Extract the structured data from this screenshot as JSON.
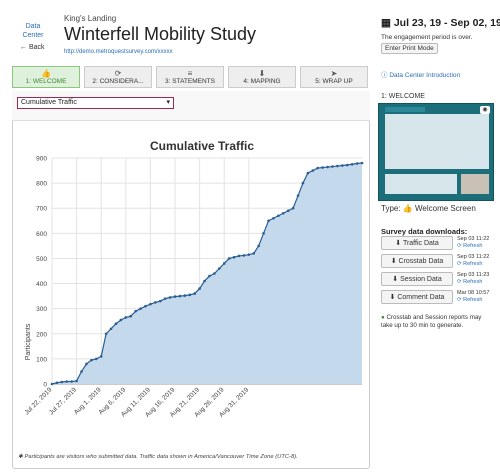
{
  "header": {
    "data_center": "Data Center",
    "back": "Back",
    "subtitle": "King's Landing",
    "title": "Winterfell Mobility Study",
    "url": "http://demo.metroquestsurvey.com/xxxxx",
    "date_range": "Jul 23, 19 - Sep 02, 19",
    "period_note": "The engagement period is over.",
    "print_mode": "Enter Print Mode"
  },
  "tabs": [
    {
      "label": "1: WELCOME",
      "icon": "thumbs-up-icon",
      "glyph": "👍",
      "active": true
    },
    {
      "label": "2: CONSIDERA...",
      "icon": "refresh-icon",
      "glyph": "⟳",
      "active": false
    },
    {
      "label": "3: STATEMENTS",
      "icon": "bars-icon",
      "glyph": "≡",
      "active": false
    },
    {
      "label": "4: MAPPING",
      "icon": "map-marker-icon",
      "glyph": "⬇",
      "active": false
    },
    {
      "label": "5: WRAP UP",
      "icon": "send-icon",
      "glyph": "➤",
      "active": false
    }
  ],
  "select": {
    "value": "Cumulative Traffic"
  },
  "footnote": "Participants are visitors who submitted data. Traffic data shown in America/Vancouver Time Zone (UTC-8).",
  "sidebar": {
    "intro_link": "Data Center Introduction",
    "step_label": "1: WELCOME",
    "type_label": "Type:",
    "type_value": "Welcome Screen",
    "downloads_title": "Survey data downloads:",
    "downloads": [
      {
        "label": "Traffic Data",
        "date": "Sep 03 11:22",
        "refresh": "Refresh"
      },
      {
        "label": "Crosstab Data",
        "date": "Sep 03 11:22",
        "refresh": "Refresh"
      },
      {
        "label": "Session Data",
        "date": "Sep 03 11:23",
        "refresh": "Refresh"
      },
      {
        "label": "Comment Data",
        "date": "Mar 08 10:57",
        "refresh": "Refresh"
      }
    ],
    "note": "Crosstab and Session reports may take up to 30 min to generate."
  },
  "colors": {
    "accent": "#2a6fb5",
    "active_tab": "#dff1dc",
    "chart_fill": "#c5d9ec",
    "chart_line": "#2a5d93"
  },
  "chart_data": {
    "type": "area",
    "title": "Cumulative Traffic",
    "ylabel": "Participants",
    "xlabel": "",
    "ylim": [
      0,
      900
    ],
    "yticks": [
      0,
      100,
      200,
      300,
      400,
      500,
      600,
      700,
      800,
      900
    ],
    "x_start": "2019-07-22",
    "x_end": "2019-09-03",
    "xticks": [
      {
        "label": "Jul 22, 2019",
        "day": 0
      },
      {
        "label": "Jul 27, 2019",
        "day": 5
      },
      {
        "label": "Aug 1, 2019",
        "day": 10
      },
      {
        "label": "Aug 6, 2019",
        "day": 15
      },
      {
        "label": "Aug 11, 2019",
        "day": 20
      },
      {
        "label": "Aug 16, 2019",
        "day": 25
      },
      {
        "label": "Aug 21, 2019",
        "day": 30
      },
      {
        "label": "Aug 26, 2019",
        "day": 35
      },
      {
        "label": "Aug 31, 2019",
        "day": 40
      }
    ],
    "grid": true,
    "values": [
      0,
      5,
      8,
      10,
      10,
      12,
      50,
      80,
      95,
      100,
      110,
      200,
      220,
      240,
      255,
      265,
      270,
      290,
      300,
      310,
      318,
      325,
      330,
      340,
      345,
      348,
      350,
      352,
      355,
      360,
      380,
      410,
      430,
      440,
      460,
      480,
      500,
      505,
      510,
      512,
      515,
      520,
      550,
      600,
      650,
      660,
      670,
      680,
      690,
      700,
      750,
      800,
      840,
      850,
      860,
      862,
      864,
      866,
      868,
      870,
      872,
      875,
      878,
      880
    ]
  }
}
